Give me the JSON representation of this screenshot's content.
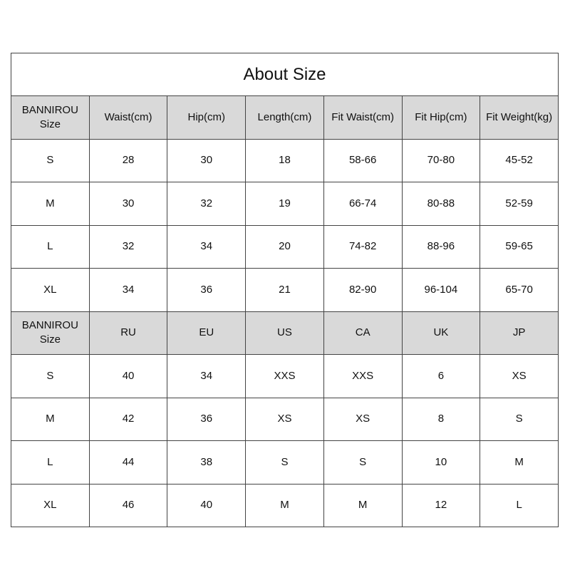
{
  "title": "About Size",
  "tables": [
    {
      "headers": [
        "BANNIROU Size",
        "Waist(cm)",
        "Hip(cm)",
        "Length(cm)",
        "Fit Waist(cm)",
        "Fit Hip(cm)",
        "Fit Weight(kg)"
      ],
      "rows": [
        [
          "S",
          "28",
          "30",
          "18",
          "58-66",
          "70-80",
          "45-52"
        ],
        [
          "M",
          "30",
          "32",
          "19",
          "66-74",
          "80-88",
          "52-59"
        ],
        [
          "L",
          "32",
          "34",
          "20",
          "74-82",
          "88-96",
          "59-65"
        ],
        [
          "XL",
          "34",
          "36",
          "21",
          "82-90",
          "96-104",
          "65-70"
        ]
      ]
    },
    {
      "headers": [
        "BANNIROU Size",
        "RU",
        "EU",
        "US",
        "CA",
        "UK",
        "JP"
      ],
      "rows": [
        [
          "S",
          "40",
          "34",
          "XXS",
          "XXS",
          "6",
          "XS"
        ],
        [
          "M",
          "42",
          "36",
          "XS",
          "XS",
          "8",
          "S"
        ],
        [
          "L",
          "44",
          "38",
          "S",
          "S",
          "10",
          "M"
        ],
        [
          "XL",
          "46",
          "40",
          "M",
          "M",
          "12",
          "L"
        ]
      ]
    }
  ],
  "colors": {
    "header_bg": "#d9d9d9",
    "border": "#444444"
  }
}
